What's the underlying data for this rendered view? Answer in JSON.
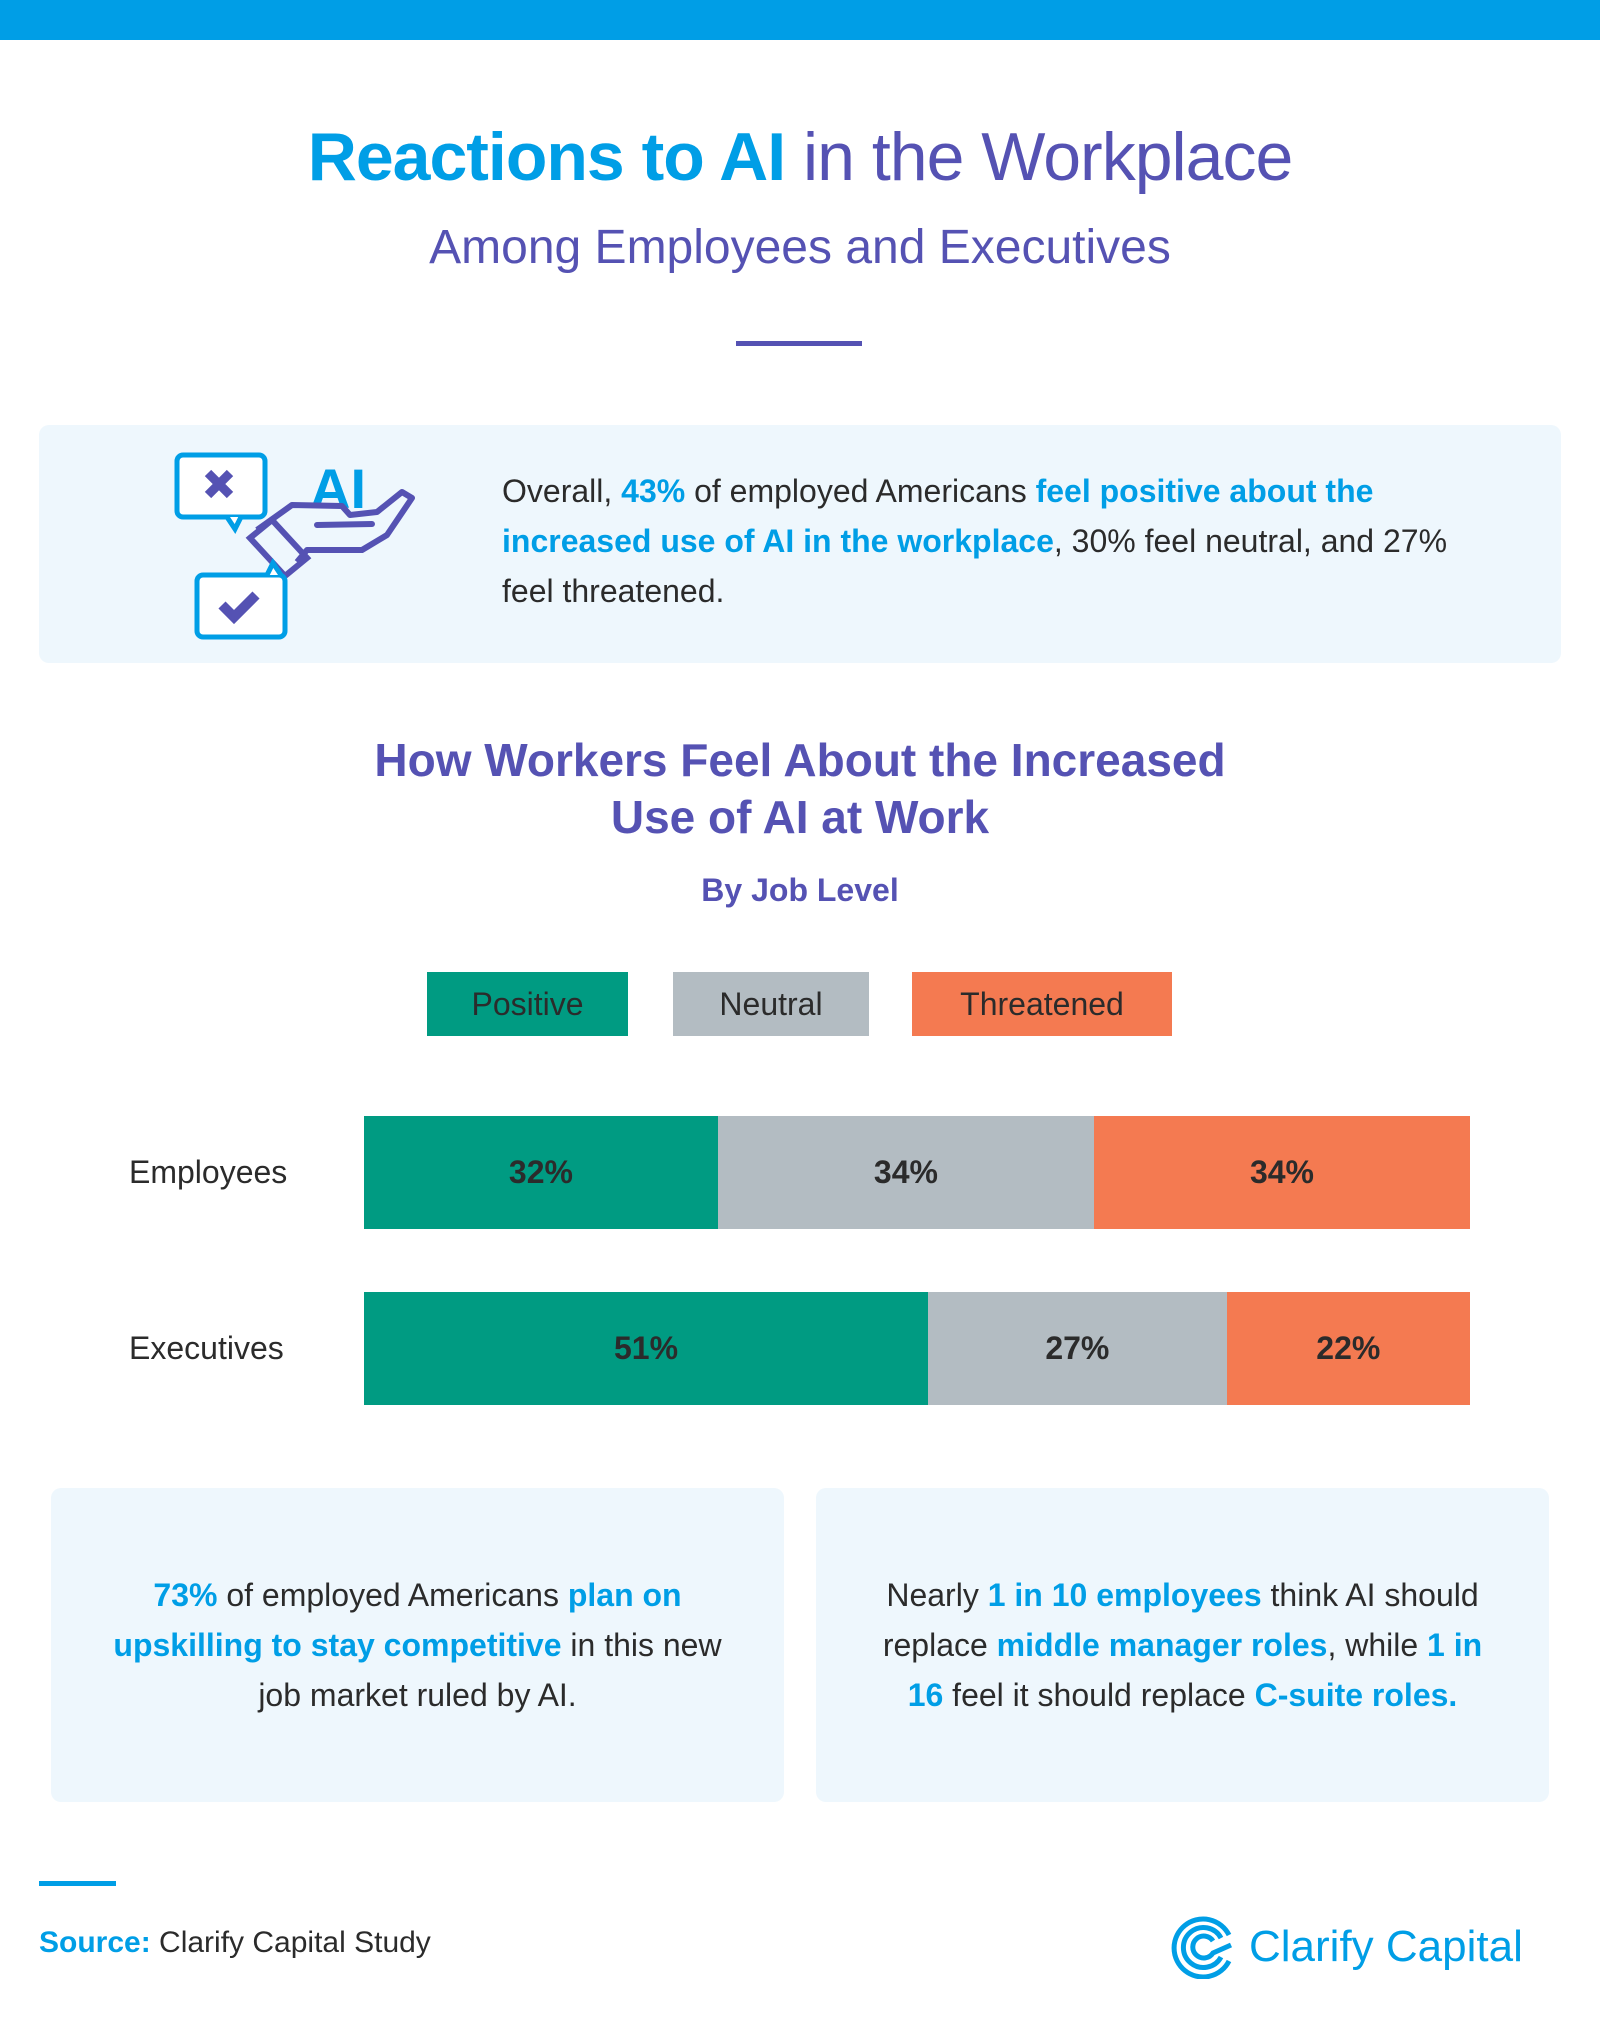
{
  "header": {
    "title_bold": "Reactions to AI",
    "title_rest": " in the Workplace",
    "subtitle": "Among Employees and Executives"
  },
  "info": {
    "icon_label": "AI",
    "segments": [
      "Overall, ",
      "43%",
      " of employed Americans ",
      "feel positive about the increased use of AI in the workplace",
      ", 30% feel neutral, and 27% feel threatened."
    ]
  },
  "chart_data": {
    "type": "bar",
    "orientation": "horizontal-stacked-100",
    "title_line1": "How Workers Feel About the Increased",
    "title_line2": "Use of AI at Work",
    "subtitle": "By Job Level",
    "categories": [
      "Employees",
      "Executives"
    ],
    "series": [
      {
        "name": "Positive",
        "color": "#009b82",
        "values": [
          32,
          51
        ],
        "labels": [
          "32%",
          "51%"
        ]
      },
      {
        "name": "Neutral",
        "color": "#b3bcc2",
        "values": [
          34,
          27
        ],
        "labels": [
          "34%",
          "27%"
        ]
      },
      {
        "name": "Threatened",
        "color": "#f47a51",
        "values": [
          34,
          22
        ],
        "labels": [
          "34%",
          "22%"
        ]
      }
    ],
    "xlim": [
      0,
      100
    ],
    "legend_position": "top"
  },
  "cards": {
    "left": [
      "73%",
      " of employed Americans ",
      "plan on upskilling to stay competitive",
      " in this new job market ruled by AI."
    ],
    "right": [
      "Nearly ",
      "1 in 10 employees",
      " think AI should replace ",
      "middle manager roles",
      ", while ",
      "1 in 16",
      " feel it should replace ",
      "C-suite roles."
    ]
  },
  "footer": {
    "source_label": "Source:",
    "source_text": " Clarify Capital Study",
    "brand": "Clarify Capital"
  },
  "colors": {
    "blue": "#009ee6",
    "purple": "#5552b3",
    "panel": "#eef7fd"
  }
}
